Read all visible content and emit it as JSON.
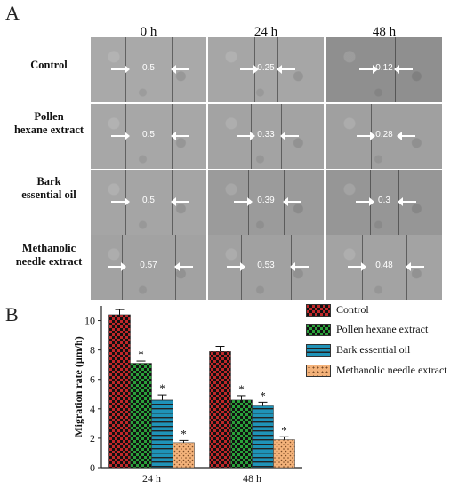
{
  "figure": {
    "panel_a_label": "A",
    "panel_b_label": "B",
    "time_headers": [
      "0 h",
      "24 h",
      "48 h"
    ],
    "rows": [
      {
        "label_lines": [
          "Control"
        ],
        "values": [
          "0.5",
          "0.25",
          "0.12"
        ],
        "gaps": [
          0.5,
          0.25,
          0.12
        ]
      },
      {
        "label_lines": [
          "Pollen",
          "hexane extract"
        ],
        "values": [
          "0.5",
          "0.33",
          "0.28"
        ],
        "gaps": [
          0.5,
          0.33,
          0.28
        ]
      },
      {
        "label_lines": [
          "Bark",
          "essential oil"
        ],
        "values": [
          "0.5",
          "0.39",
          "0.3"
        ],
        "gaps": [
          0.5,
          0.39,
          0.3
        ]
      },
      {
        "label_lines": [
          "Methanolic",
          "needle extract"
        ],
        "values": [
          "0.57",
          "0.53",
          "0.48"
        ],
        "gaps": [
          0.57,
          0.53,
          0.48
        ]
      }
    ]
  },
  "chart_data": {
    "type": "bar",
    "title": "",
    "xlabel": "",
    "ylabel": "Migration rate (μm/h)",
    "ylim": [
      0,
      11
    ],
    "yticks": [
      0,
      2,
      4,
      6,
      8,
      10
    ],
    "categories": [
      "24 h",
      "48 h"
    ],
    "series": [
      {
        "name": "Control",
        "values": [
          10.4,
          7.9
        ],
        "errors": [
          0.35,
          0.35
        ],
        "significant": [
          false,
          false
        ],
        "color": "#c0282a",
        "pattern": "checker"
      },
      {
        "name": "Pollen hexane extract",
        "values": [
          7.1,
          4.6
        ],
        "errors": [
          0.15,
          0.3
        ],
        "significant": [
          true,
          true
        ],
        "color": "#2aa03a",
        "pattern": "checker"
      },
      {
        "name": "Bark essential oil",
        "values": [
          4.6,
          4.2
        ],
        "errors": [
          0.35,
          0.25
        ],
        "significant": [
          true,
          true
        ],
        "color": "#1f93b8",
        "pattern": "hlines"
      },
      {
        "name": "Methanolic needle extract",
        "values": [
          1.7,
          1.9
        ],
        "errors": [
          0.15,
          0.2
        ],
        "significant": [
          true,
          true
        ],
        "color": "#f3b27a",
        "pattern": "dots"
      }
    ],
    "significance_marker": "*",
    "legend_position": "right"
  }
}
